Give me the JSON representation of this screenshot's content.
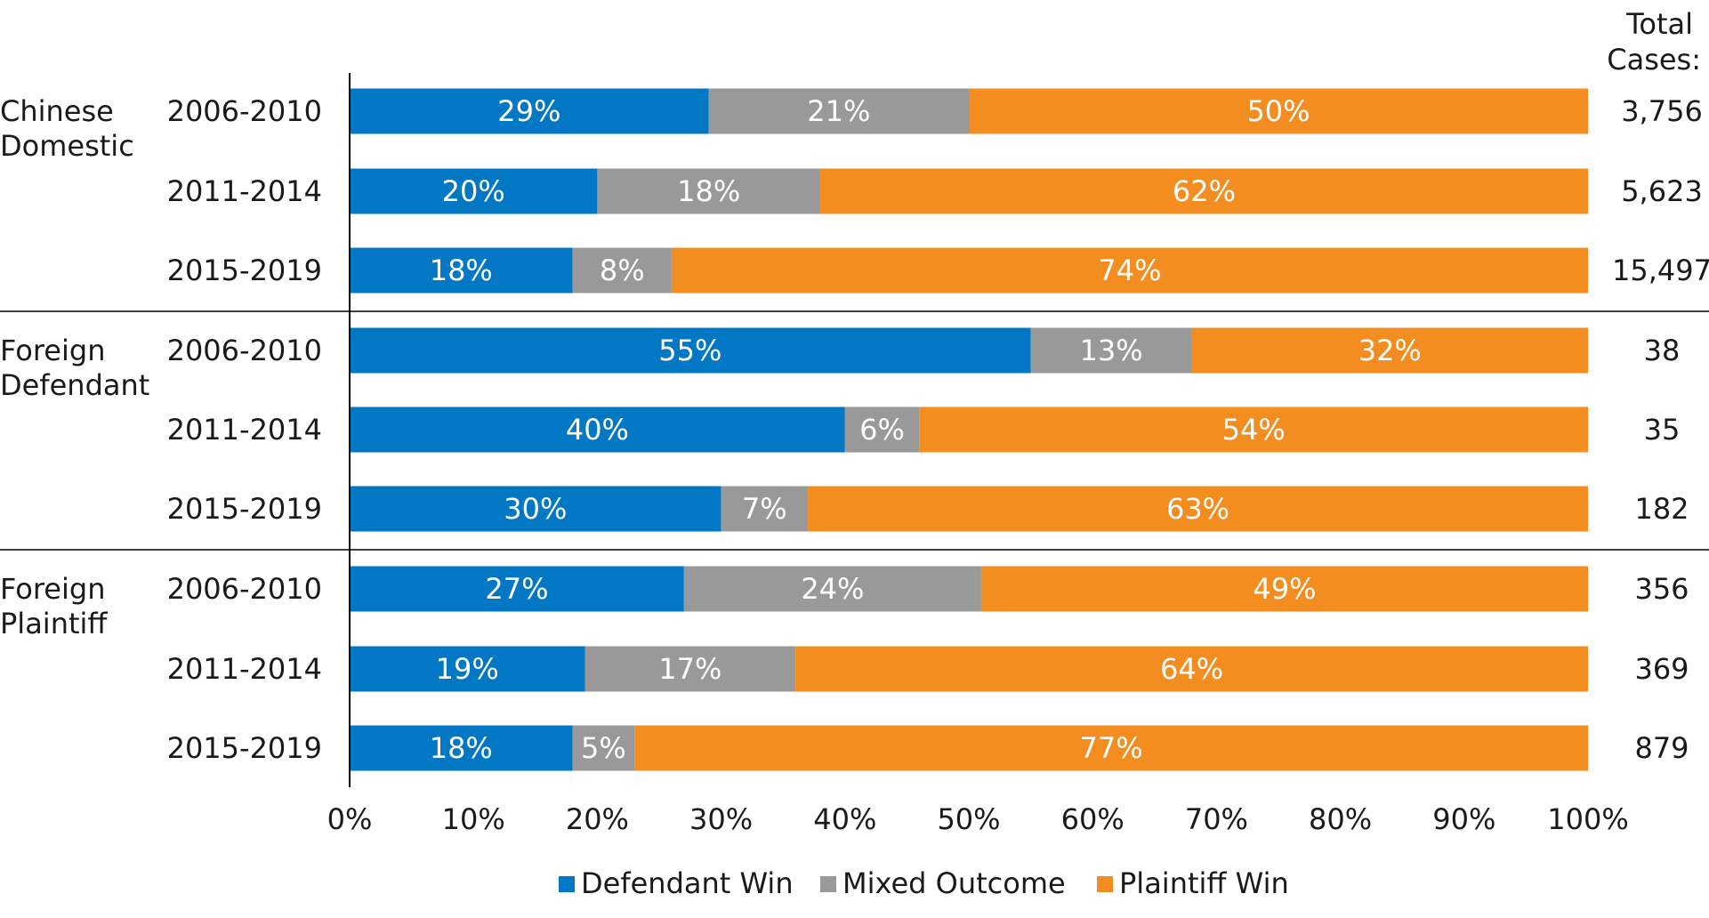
{
  "chart_data": {
    "type": "bar",
    "orientation": "horizontal",
    "stacked": true,
    "title": "",
    "totals_header": [
      "Total",
      "Cases:"
    ],
    "xlim": [
      0,
      100
    ],
    "x_ticks": [
      {
        "value": 0,
        "label": "0%"
      },
      {
        "value": 10,
        "label": "10%"
      },
      {
        "value": 20,
        "label": "20%"
      },
      {
        "value": 30,
        "label": "30%"
      },
      {
        "value": 40,
        "label": "40%"
      },
      {
        "value": 50,
        "label": "50%"
      },
      {
        "value": 60,
        "label": "60%"
      },
      {
        "value": 70,
        "label": "70%"
      },
      {
        "value": 80,
        "label": "80%"
      },
      {
        "value": 90,
        "label": "90%"
      },
      {
        "value": 100,
        "label": "100%"
      }
    ],
    "series": [
      {
        "name": "Defendant Win",
        "color": "#0277c4"
      },
      {
        "name": "Mixed Outcome",
        "color": "#999999"
      },
      {
        "name": "Plaintiff Win",
        "color": "#f48d1f"
      }
    ],
    "legend_position": "bottom",
    "grid": false,
    "groups": [
      {
        "label": [
          "Chinese",
          "Domestic"
        ],
        "rows": [
          {
            "period": "2006-2010",
            "values": [
              29,
              21,
              50
            ],
            "labels": [
              "29%",
              "21%",
              "50%"
            ],
            "total": "3,756"
          },
          {
            "period": "2011-2014",
            "values": [
              20,
              18,
              62
            ],
            "labels": [
              "20%",
              "18%",
              "62%"
            ],
            "total": "5,623"
          },
          {
            "period": "2015-2019",
            "values": [
              18,
              8,
              74
            ],
            "labels": [
              "18%",
              "8%",
              "74%"
            ],
            "total": "15,497"
          }
        ]
      },
      {
        "label": [
          "Foreign",
          "Defendant"
        ],
        "rows": [
          {
            "period": "2006-2010",
            "values": [
              55,
              13,
              32
            ],
            "labels": [
              "55%",
              "13%",
              "32%"
            ],
            "total": "38"
          },
          {
            "period": "2011-2014",
            "values": [
              40,
              6,
              54
            ],
            "labels": [
              "40%",
              "6%",
              "54%"
            ],
            "total": "35"
          },
          {
            "period": "2015-2019",
            "values": [
              30,
              7,
              63
            ],
            "labels": [
              "30%",
              "7%",
              "63%"
            ],
            "total": "182"
          }
        ]
      },
      {
        "label": [
          "Foreign",
          "Plaintiff"
        ],
        "rows": [
          {
            "period": "2006-2010",
            "values": [
              27,
              24,
              49
            ],
            "labels": [
              "27%",
              "24%",
              "49%"
            ],
            "total": "356"
          },
          {
            "period": "2011-2014",
            "values": [
              19,
              17,
              64
            ],
            "labels": [
              "19%",
              "17%",
              "64%"
            ],
            "total": "369"
          },
          {
            "period": "2015-2019",
            "values": [
              18,
              5,
              77
            ],
            "labels": [
              "18%",
              "5%",
              "77%"
            ],
            "total": "879"
          }
        ]
      }
    ]
  }
}
